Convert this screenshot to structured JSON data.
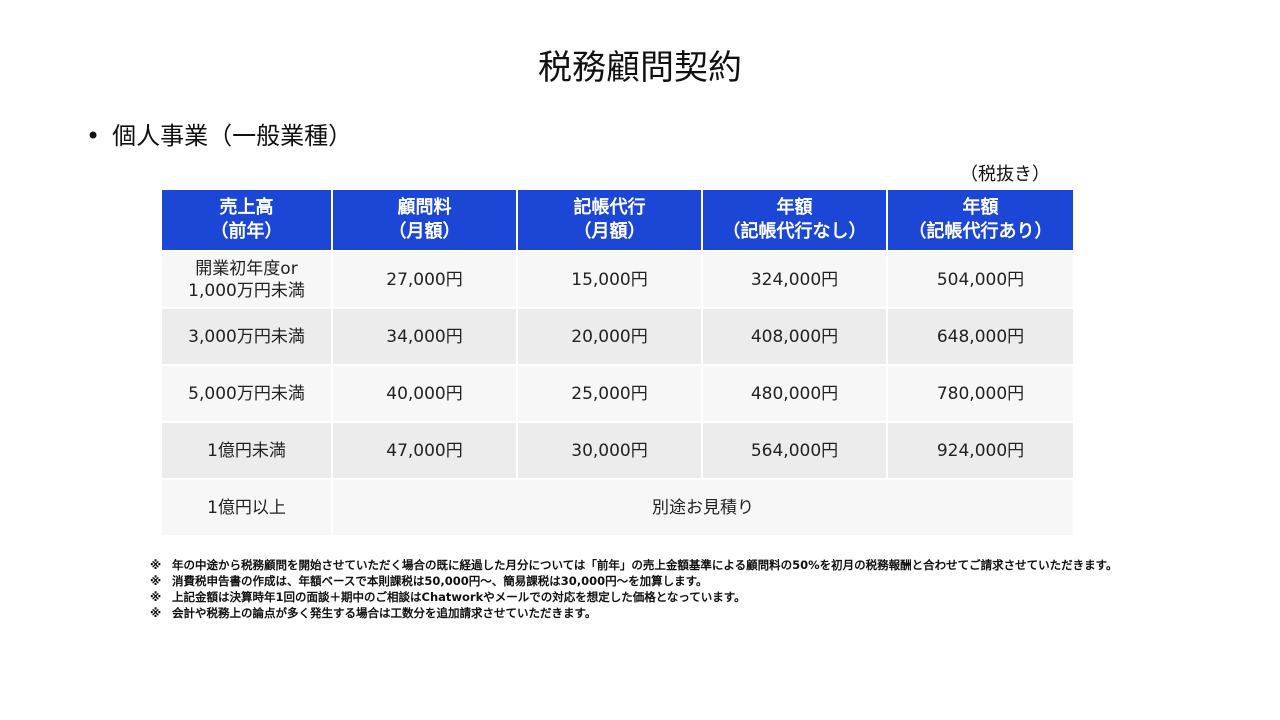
{
  "title": "税務顧問契約",
  "subtitle": {
    "bullet": "•",
    "text": "個人事業（一般業種）"
  },
  "tax_note": "（税抜き）",
  "table": {
    "headers": [
      {
        "line1": "売上高",
        "line2": "（前年）"
      },
      {
        "line1": "顧問料",
        "line2": "（月額）"
      },
      {
        "line1": "記帳代行",
        "line2": "（月額）"
      },
      {
        "line1": "年額",
        "line2": "（記帳代行なし）"
      },
      {
        "line1": "年額",
        "line2": "（記帳代行あり）"
      }
    ],
    "rows": [
      {
        "label_line1": "開業初年度or",
        "label_line2": "1,000万円未満",
        "fee": "27,000円",
        "bookkeeping": "15,000円",
        "annual_without": "324,000円",
        "annual_with": "504,000円"
      },
      {
        "label_line1": "3,000万円未満",
        "label_line2": "",
        "fee": "34,000円",
        "bookkeeping": "20,000円",
        "annual_without": "408,000円",
        "annual_with": "648,000円"
      },
      {
        "label_line1": "5,000万円未満",
        "label_line2": "",
        "fee": "40,000円",
        "bookkeeping": "25,000円",
        "annual_without": "480,000円",
        "annual_with": "780,000円"
      },
      {
        "label_line1": "1億円未満",
        "label_line2": "",
        "fee": "47,000円",
        "bookkeeping": "30,000円",
        "annual_without": "564,000円",
        "annual_with": "924,000円"
      }
    ],
    "last_row": {
      "label": "1億円以上",
      "value": "別途お見積り"
    }
  },
  "notes": [
    {
      "mark": "※",
      "text": "年の中途から税務顧問を開始させていただく場合の既に経過した月分については「前年」の売上金額基準による顧問料の50%を初月の税務報酬と合わせてご請求させていただきます。"
    },
    {
      "mark": "※",
      "text": "消費税申告書の作成は、年額ベースで本則課税は50,000円～、簡易課税は30,000円～を加算します。"
    },
    {
      "mark": "※",
      "text": "上記金額は決算時年1回の面談＋期中のご相談はChatworkやメールでの対応を想定した価格となっています。"
    },
    {
      "mark": "※",
      "text": "会計や税務上の論点が多く発生する場合は工数分を追加請求させていただきます。"
    }
  ]
}
